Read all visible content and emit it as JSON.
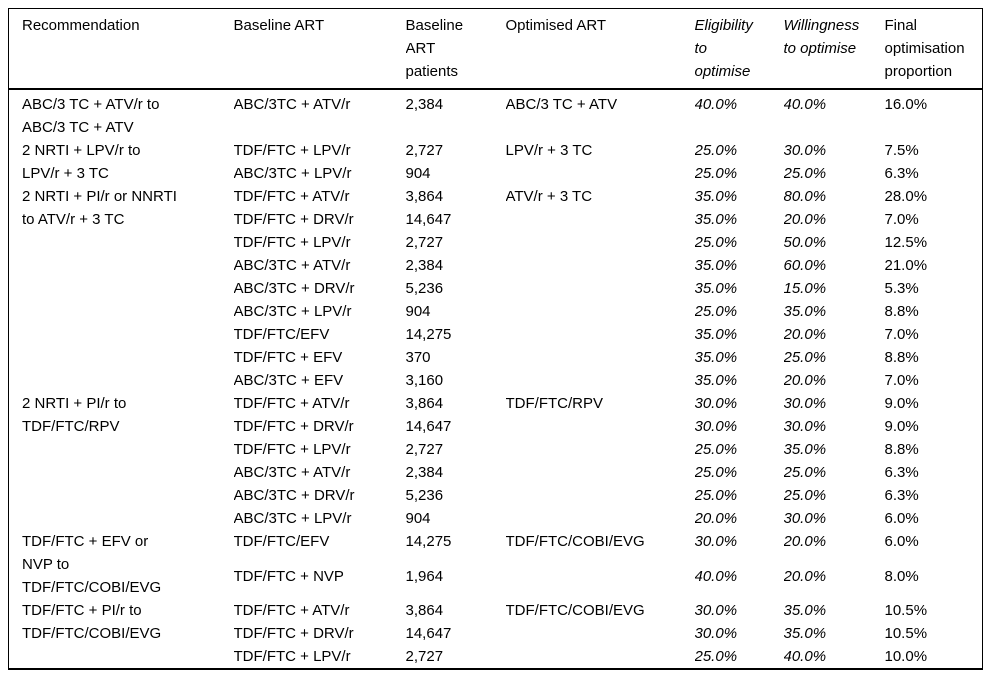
{
  "table": {
    "columns": [
      {
        "label": "Recommendation",
        "italic": false
      },
      {
        "label": "Baseline ART",
        "italic": false
      },
      {
        "label": "Baseline\nART\npatients",
        "italic": false
      },
      {
        "label": "Optimised ART",
        "italic": false
      },
      {
        "label": "Eligibility\nto\noptimise",
        "italic": true
      },
      {
        "label": "Willingness\nto optimise",
        "italic": true
      },
      {
        "label": "Final\noptimisation\nproportion",
        "italic": false
      }
    ],
    "groups": [
      {
        "recommendation": "ABC/3 TC + ATV/r to\nABC/3 TC + ATV",
        "optimised_art": "ABC/3 TC + ATV",
        "rows": [
          {
            "baseline_art": "ABC/3TC + ATV/r",
            "patients": "2,384",
            "eligibility": "40.0%",
            "willingness": "40.0%",
            "final": "16.0%"
          }
        ]
      },
      {
        "recommendation": "2 NRTI + LPV/r to\nLPV/r + 3 TC",
        "optimised_art": "LPV/r + 3 TC",
        "rows": [
          {
            "baseline_art": "TDF/FTC + LPV/r",
            "patients": "2,727",
            "eligibility": "25.0%",
            "willingness": "30.0%",
            "final": "7.5%"
          },
          {
            "baseline_art": "ABC/3TC + LPV/r",
            "patients": "904",
            "eligibility": "25.0%",
            "willingness": "25.0%",
            "final": "6.3%"
          }
        ]
      },
      {
        "recommendation": "2 NRTI + PI/r or NNRTI\nto ATV/r + 3 TC",
        "optimised_art": "ATV/r + 3 TC",
        "rows": [
          {
            "baseline_art": "TDF/FTC + ATV/r",
            "patients": "3,864",
            "eligibility": "35.0%",
            "willingness": "80.0%",
            "final": "28.0%"
          },
          {
            "baseline_art": "TDF/FTC + DRV/r",
            "patients": "14,647",
            "eligibility": "35.0%",
            "willingness": "20.0%",
            "final": "7.0%"
          },
          {
            "baseline_art": "TDF/FTC + LPV/r",
            "patients": "2,727",
            "eligibility": "25.0%",
            "willingness": "50.0%",
            "final": "12.5%"
          },
          {
            "baseline_art": "ABC/3TC + ATV/r",
            "patients": "2,384",
            "eligibility": "35.0%",
            "willingness": "60.0%",
            "final": "21.0%"
          },
          {
            "baseline_art": "ABC/3TC + DRV/r",
            "patients": "5,236",
            "eligibility": "35.0%",
            "willingness": "15.0%",
            "final": "5.3%"
          },
          {
            "baseline_art": "ABC/3TC + LPV/r",
            "patients": "904",
            "eligibility": "25.0%",
            "willingness": "35.0%",
            "final": "8.8%"
          },
          {
            "baseline_art": "TDF/FTC/EFV",
            "patients": "14,275",
            "eligibility": "35.0%",
            "willingness": "20.0%",
            "final": "7.0%"
          },
          {
            "baseline_art": "TDF/FTC + EFV",
            "patients": "370",
            "eligibility": "35.0%",
            "willingness": "25.0%",
            "final": "8.8%"
          },
          {
            "baseline_art": "ABC/3TC + EFV",
            "patients": "3,160",
            "eligibility": "35.0%",
            "willingness": "20.0%",
            "final": "7.0%"
          }
        ]
      },
      {
        "recommendation": "2 NRTI + PI/r to\nTDF/FTC/RPV",
        "optimised_art": "TDF/FTC/RPV",
        "rows": [
          {
            "baseline_art": "TDF/FTC + ATV/r",
            "patients": "3,864",
            "eligibility": "30.0%",
            "willingness": "30.0%",
            "final": "9.0%"
          },
          {
            "baseline_art": "TDF/FTC + DRV/r",
            "patients": "14,647",
            "eligibility": "30.0%",
            "willingness": "30.0%",
            "final": "9.0%"
          },
          {
            "baseline_art": "TDF/FTC + LPV/r",
            "patients": "2,727",
            "eligibility": "25.0%",
            "willingness": "35.0%",
            "final": "8.8%"
          },
          {
            "baseline_art": "ABC/3TC + ATV/r",
            "patients": "2,384",
            "eligibility": "25.0%",
            "willingness": "25.0%",
            "final": "6.3%"
          },
          {
            "baseline_art": "ABC/3TC + DRV/r",
            "patients": "5,236",
            "eligibility": "25.0%",
            "willingness": "25.0%",
            "final": "6.3%"
          },
          {
            "baseline_art": "ABC/3TC + LPV/r",
            "patients": "904",
            "eligibility": "20.0%",
            "willingness": "30.0%",
            "final": "6.0%"
          }
        ]
      },
      {
        "recommendation": "TDF/FTC + EFV or\nNVP to\nTDF/FTC/COBI/EVG",
        "optimised_art": "TDF/FTC/COBI/EVG",
        "rows": [
          {
            "baseline_art": "TDF/FTC/EFV",
            "patients": "14,275",
            "eligibility": "30.0%",
            "willingness": "20.0%",
            "final": "6.0%"
          },
          {
            "baseline_art": "TDF/FTC + NVP",
            "patients": "1,964",
            "eligibility": "40.0%",
            "willingness": "20.0%",
            "final": "8.0%"
          }
        ]
      },
      {
        "recommendation": "TDF/FTC + PI/r to\nTDF/FTC/COBI/EVG",
        "optimised_art": "TDF/FTC/COBI/EVG",
        "rows": [
          {
            "baseline_art": "TDF/FTC + ATV/r",
            "patients": "3,864",
            "eligibility": "30.0%",
            "willingness": "35.0%",
            "final": "10.5%"
          },
          {
            "baseline_art": "TDF/FTC + DRV/r",
            "patients": "14,647",
            "eligibility": "30.0%",
            "willingness": "35.0%",
            "final": "10.5%"
          },
          {
            "baseline_art": "TDF/FTC + LPV/r",
            "patients": "2,727",
            "eligibility": "25.0%",
            "willingness": "40.0%",
            "final": "10.0%"
          }
        ]
      }
    ]
  }
}
